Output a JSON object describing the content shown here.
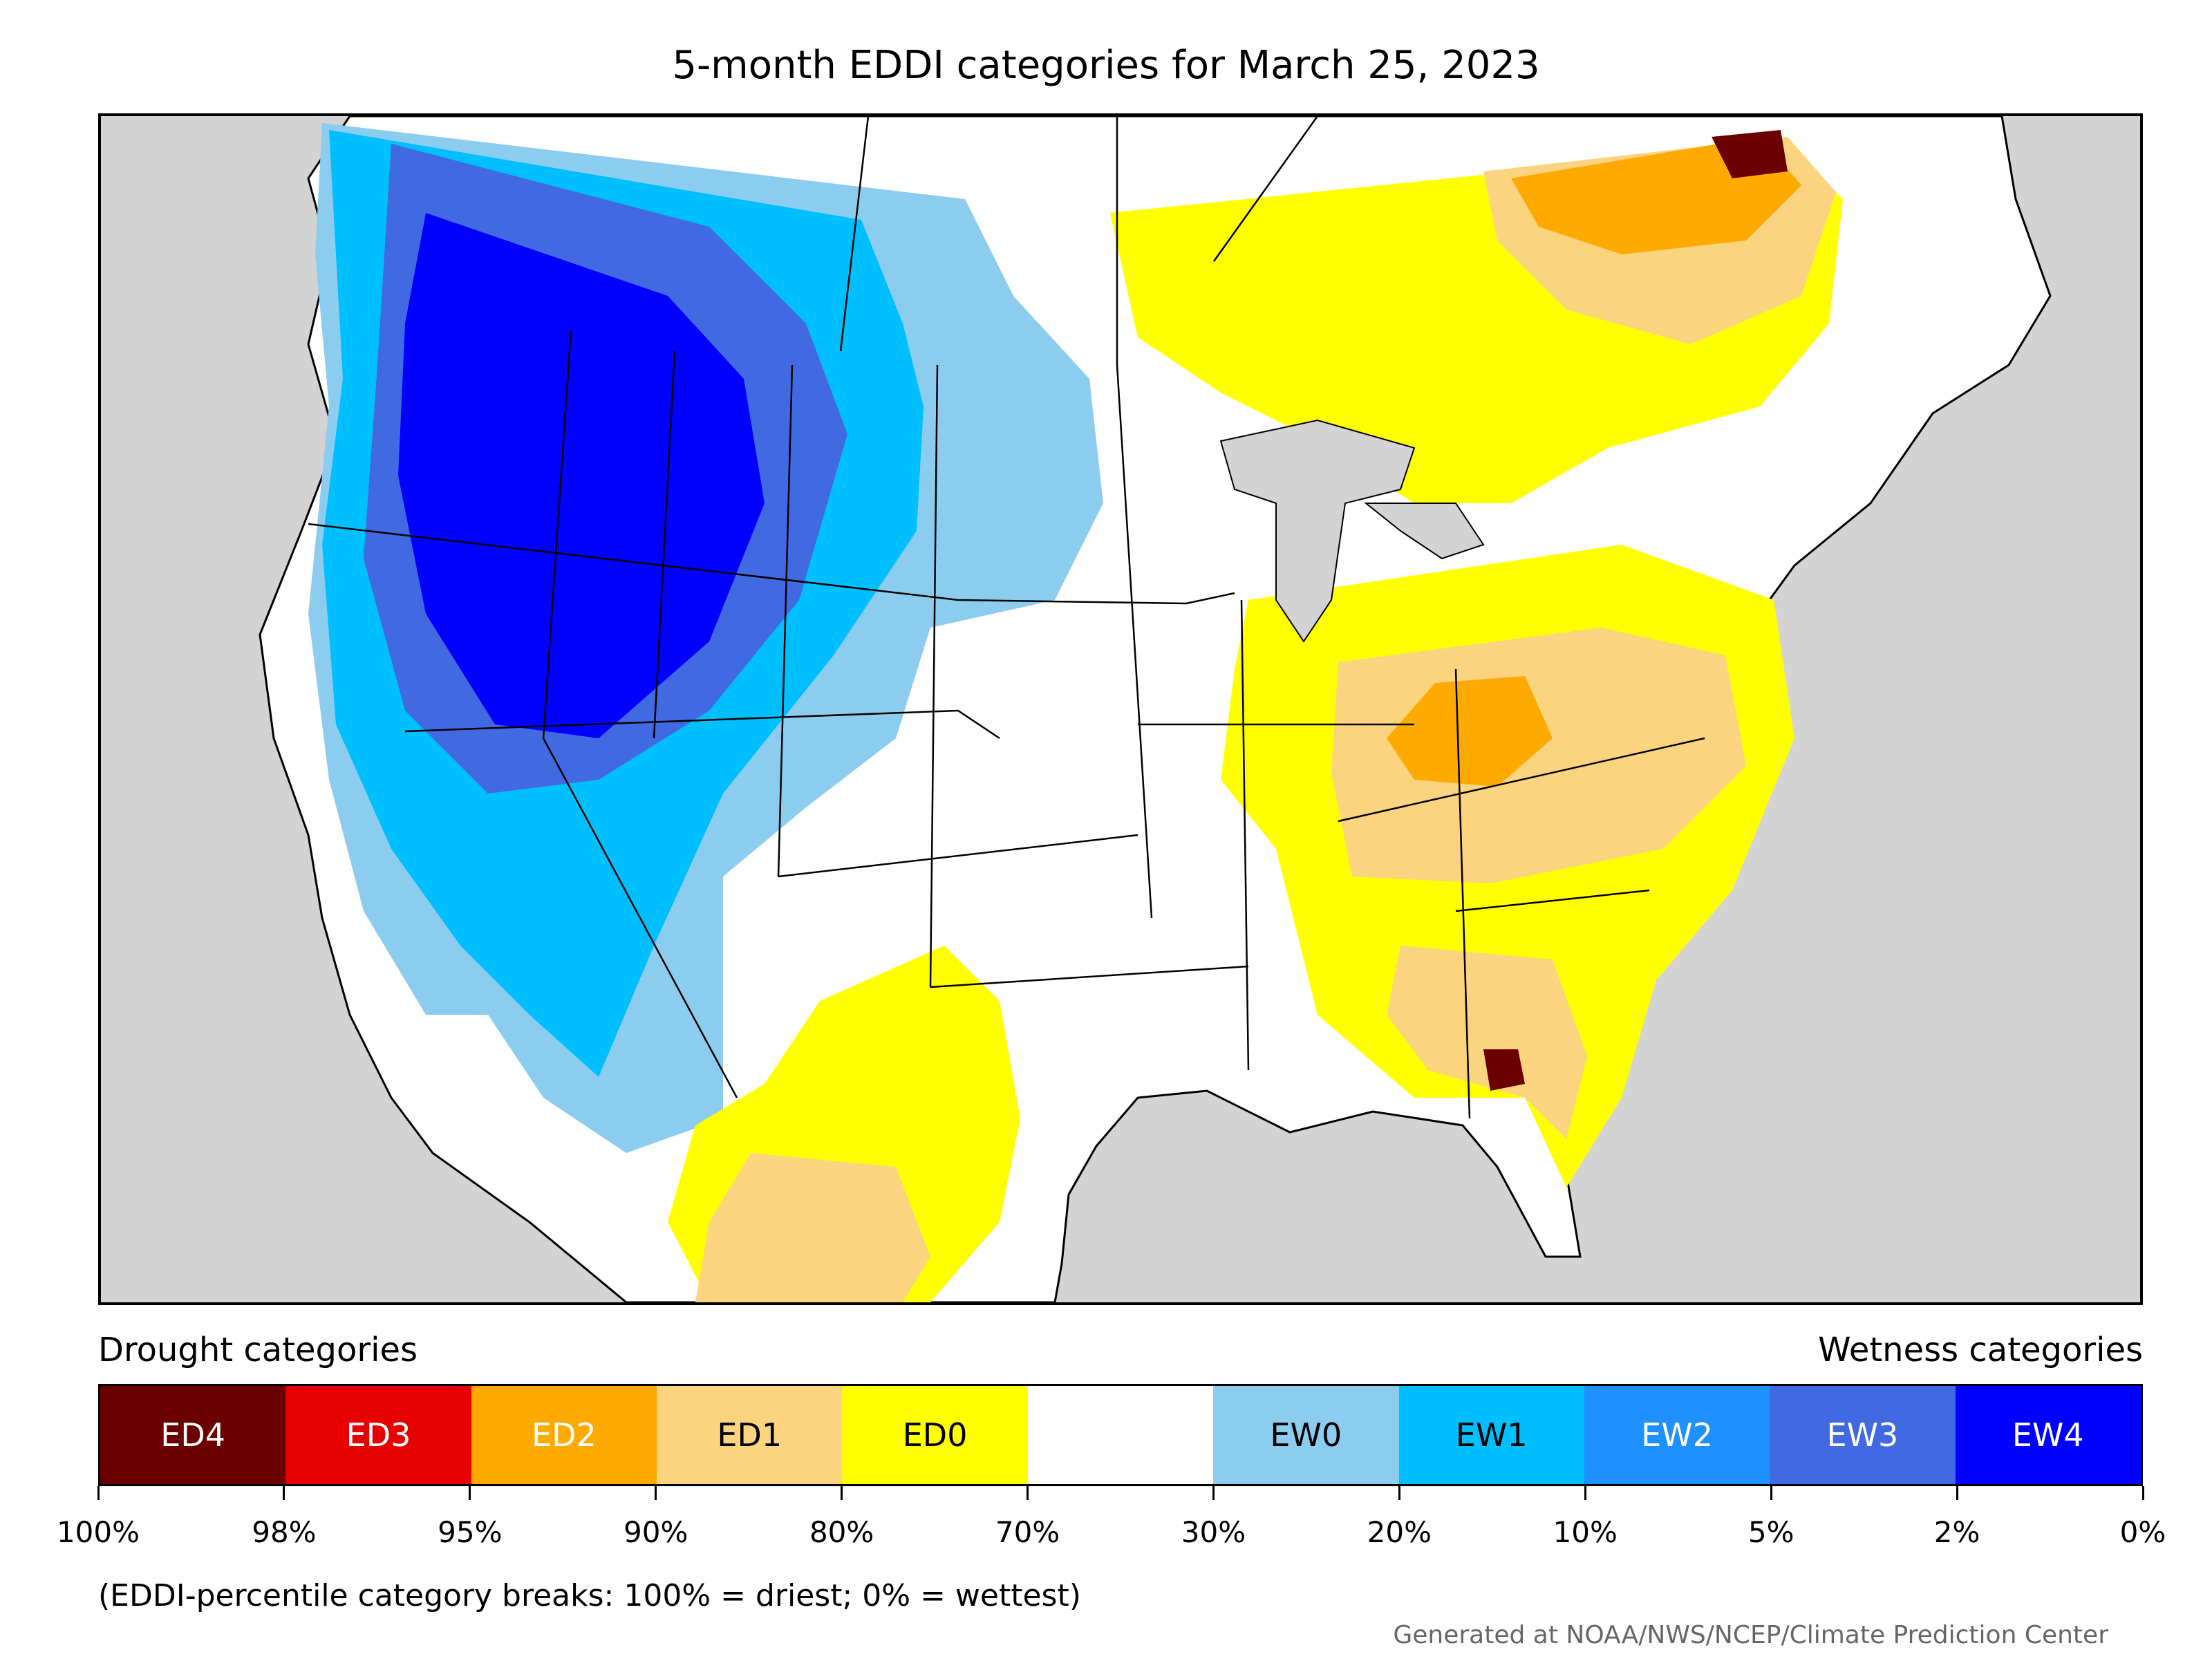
{
  "title": "5-month EDDI categories for March 25, 2023",
  "legend": {
    "drought_label": "Drought categories",
    "wetness_label": "Wetness categories",
    "categories": [
      {
        "label": "ED4",
        "color": "#6b0000",
        "text_color": "#ffffff"
      },
      {
        "label": "ED3",
        "color": "#e60000",
        "text_color": "#ffffff"
      },
      {
        "label": "ED2",
        "color": "#ffaa00",
        "text_color": "#ffffff"
      },
      {
        "label": "ED1",
        "color": "#fcd37f",
        "text_color": "#000000"
      },
      {
        "label": "ED0",
        "color": "#ffff00",
        "text_color": "#000000"
      },
      {
        "label": "",
        "color": "#ffffff",
        "text_color": "#000000"
      },
      {
        "label": "EW0",
        "color": "#8ccdef",
        "text_color": "#000000"
      },
      {
        "label": "EW1",
        "color": "#00bfff",
        "text_color": "#000000"
      },
      {
        "label": "EW2",
        "color": "#1e90ff",
        "text_color": "#ffffff"
      },
      {
        "label": "EW3",
        "color": "#4169e1",
        "text_color": "#ffffff"
      },
      {
        "label": "EW4",
        "color": "#0000ff",
        "text_color": "#ffffff"
      }
    ],
    "ticks": [
      "100%",
      "98%",
      "95%",
      "90%",
      "80%",
      "70%",
      "30%",
      "20%",
      "10%",
      "5%",
      "2%",
      "0%"
    ]
  },
  "note": "(EDDI-percentile category breaks: 100% = driest; 0% = wettest)",
  "credit": "Generated at NOAA/NWS/NCEP/Climate Prediction Center",
  "map_colors": {
    "ocean": "#d3d3d3",
    "land": "#ffffff",
    "border": "#000000"
  }
}
